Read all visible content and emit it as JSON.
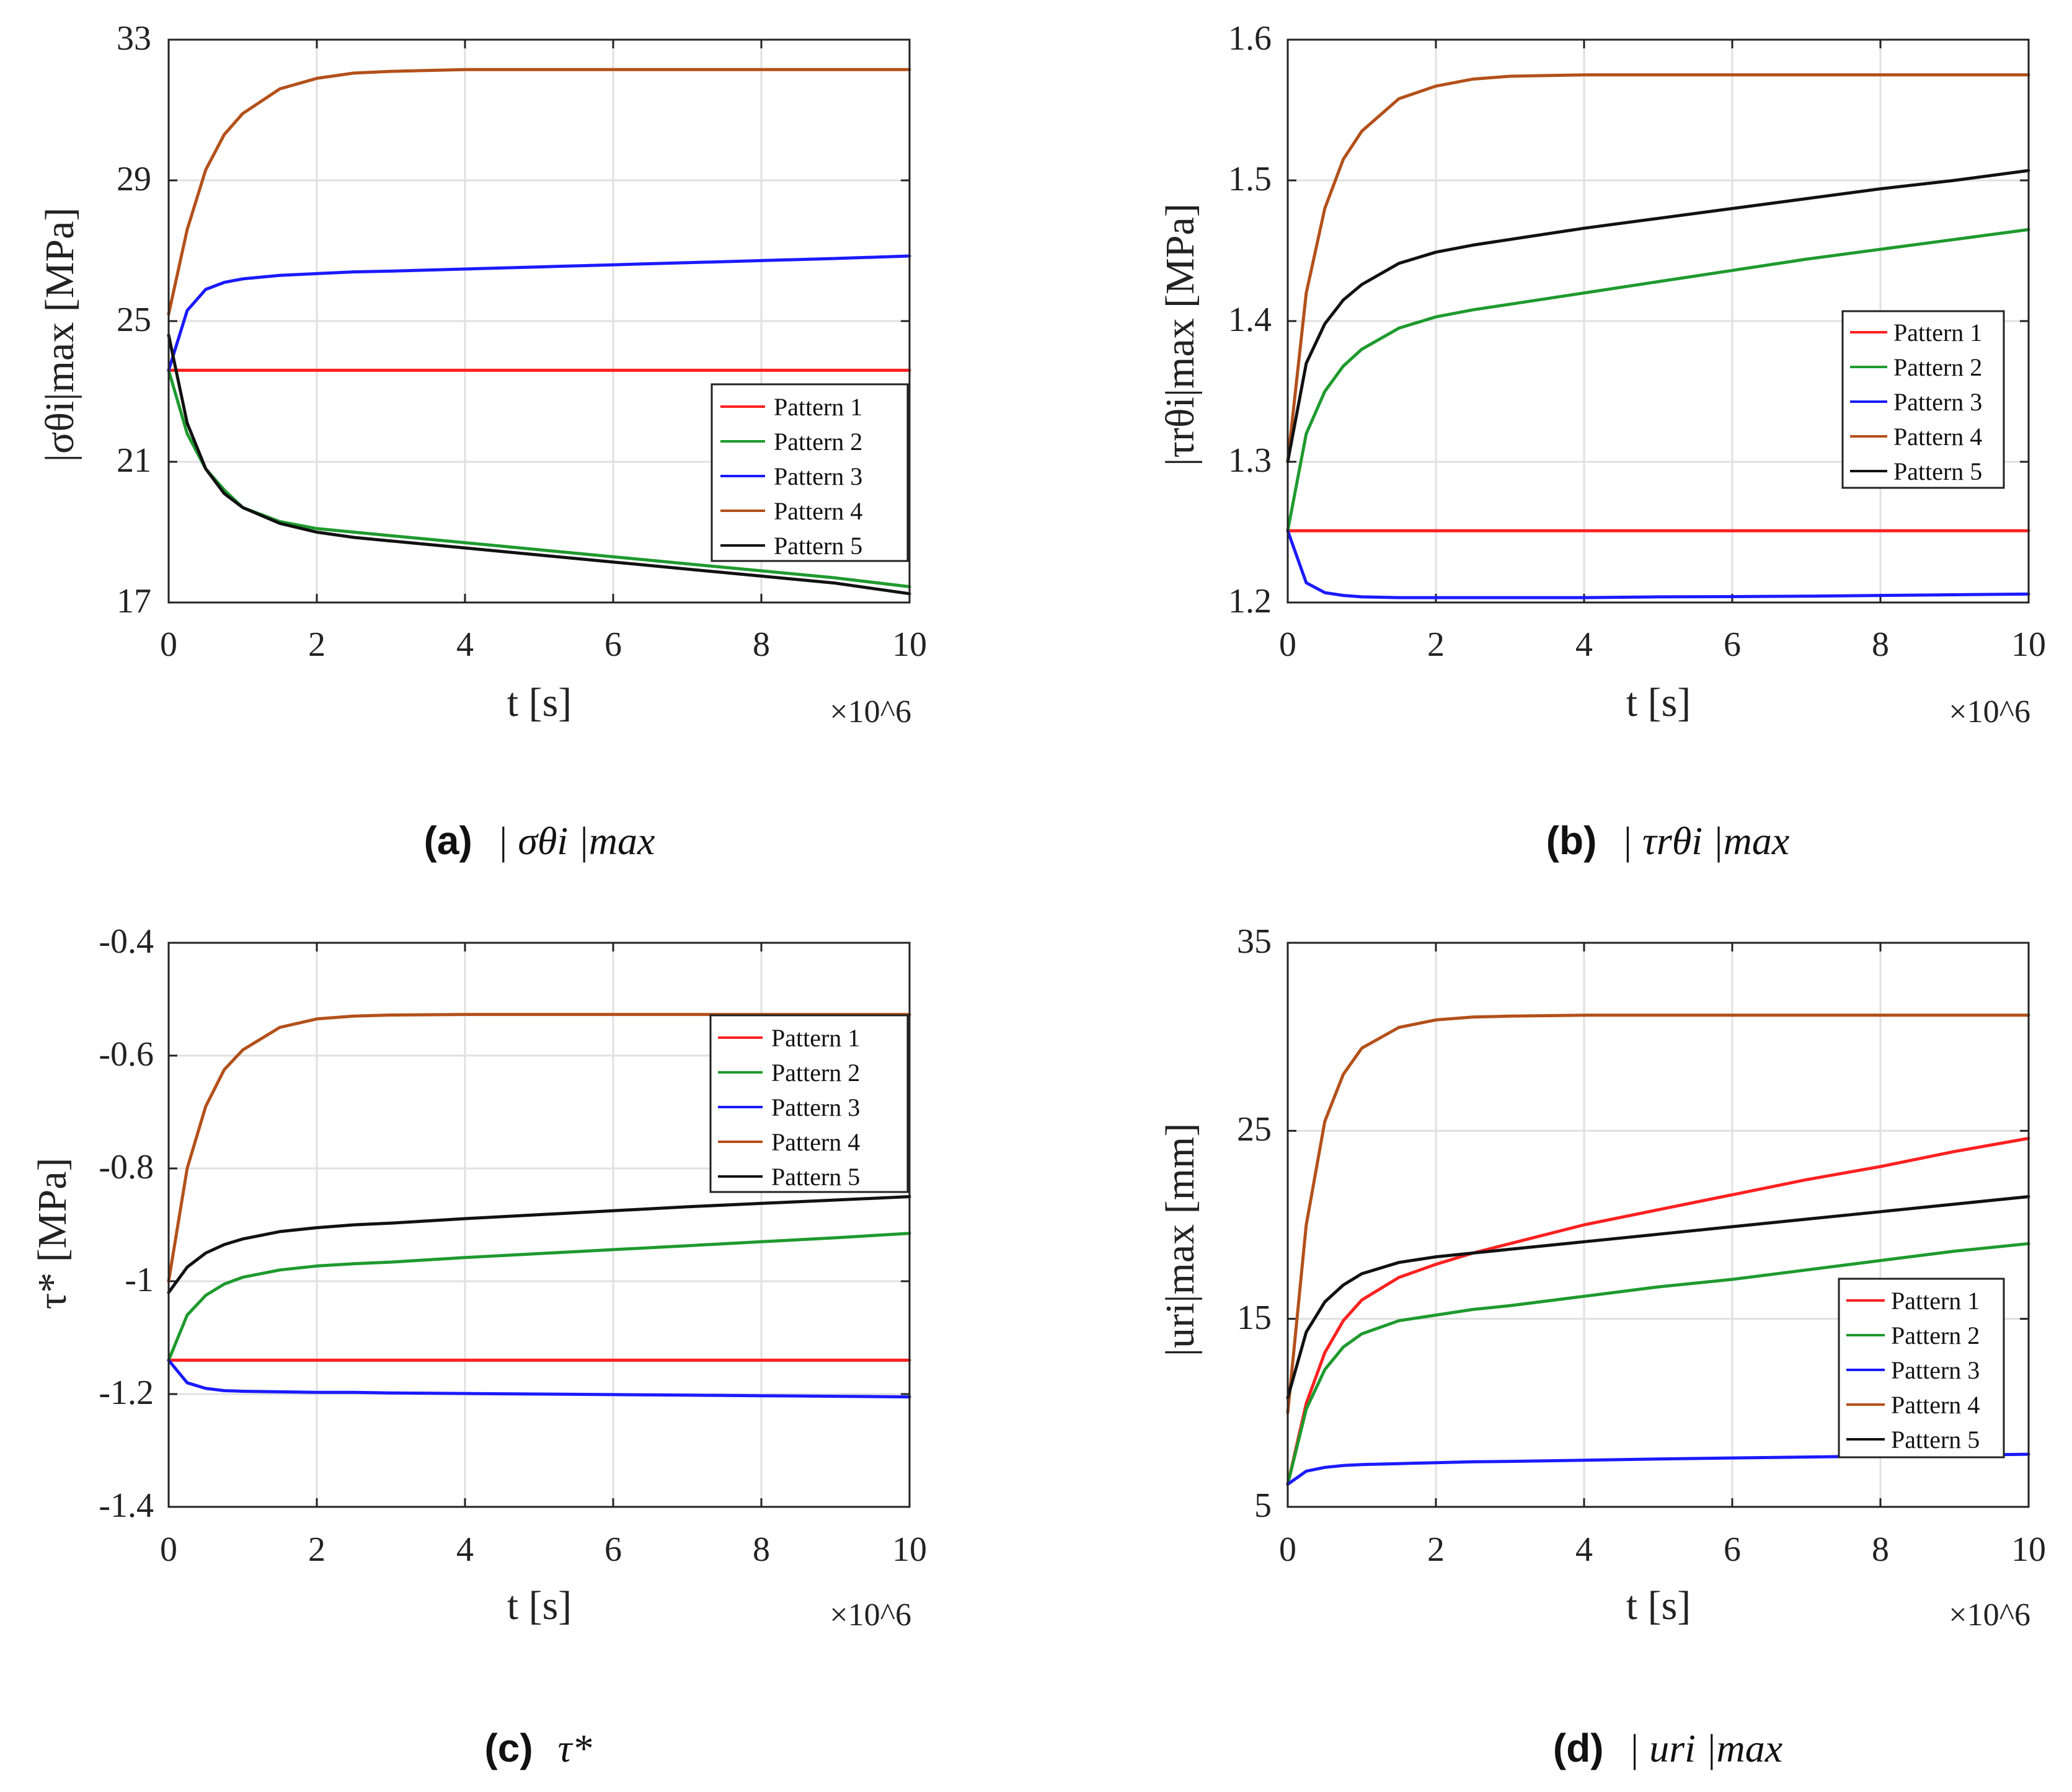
{
  "colors": {
    "pattern1": "#ff2020",
    "pattern2": "#1e9a2e",
    "pattern3": "#1a1aff",
    "pattern4": "#b3501a",
    "pattern5": "#111111",
    "grid": "#e0e0e0"
  },
  "chart_data": [
    {
      "id": "a",
      "type": "line",
      "caption": "(a)",
      "caption_symbol": "| σθi |max",
      "xlabel": "t [s]",
      "ylabel": "|σθi|max [MPa]",
      "xlim": [
        0,
        10
      ],
      "ylim": [
        17,
        33
      ],
      "xticks": [
        "0",
        "2",
        "4",
        "6",
        "8",
        "10"
      ],
      "yticks": [
        "17",
        "21",
        "25",
        "29",
        "33"
      ],
      "x_multiplier": "×10^6",
      "legend_position": "lower-right",
      "x": [
        0,
        0.25,
        0.5,
        0.75,
        1,
        1.5,
        2,
        2.5,
        3,
        4,
        5,
        6,
        7,
        8,
        9,
        10
      ],
      "series": [
        {
          "name": "Pattern 1",
          "color_key": "pattern1",
          "values": [
            23.6,
            23.6,
            23.6,
            23.6,
            23.6,
            23.6,
            23.6,
            23.6,
            23.6,
            23.6,
            23.6,
            23.6,
            23.6,
            23.6,
            23.6,
            23.6
          ]
        },
        {
          "name": "Pattern 2",
          "color_key": "pattern2",
          "values": [
            23.6,
            21.8,
            20.8,
            20.2,
            19.7,
            19.3,
            19.1,
            19.0,
            18.9,
            18.7,
            18.5,
            18.3,
            18.1,
            17.9,
            17.7,
            17.45
          ]
        },
        {
          "name": "Pattern 3",
          "color_key": "pattern3",
          "values": [
            23.6,
            25.3,
            25.9,
            26.1,
            26.2,
            26.3,
            26.35,
            26.4,
            26.42,
            26.48,
            26.54,
            26.6,
            26.66,
            26.72,
            26.78,
            26.85
          ]
        },
        {
          "name": "Pattern 4",
          "color_key": "pattern4",
          "values": [
            25.2,
            27.6,
            29.3,
            30.3,
            30.9,
            31.6,
            31.9,
            32.05,
            32.1,
            32.15,
            32.15,
            32.15,
            32.15,
            32.15,
            32.15,
            32.15
          ]
        },
        {
          "name": "Pattern 5",
          "color_key": "pattern5",
          "values": [
            24.6,
            22.1,
            20.8,
            20.1,
            19.7,
            19.25,
            19.0,
            18.85,
            18.75,
            18.55,
            18.35,
            18.15,
            17.95,
            17.75,
            17.55,
            17.25
          ]
        }
      ]
    },
    {
      "id": "b",
      "type": "line",
      "caption": "(b)",
      "caption_symbol": "| τrθi |max",
      "xlabel": "t [s]",
      "ylabel": "|τrθi|max [MPa]",
      "xlim": [
        0,
        10
      ],
      "ylim": [
        1.2,
        1.6
      ],
      "xticks": [
        "0",
        "2",
        "4",
        "6",
        "8",
        "10"
      ],
      "yticks": [
        "1.2",
        "1.3",
        "1.4",
        "1.5",
        "1.6"
      ],
      "x_multiplier": "×10^6",
      "legend_position": "upper-right",
      "x": [
        0,
        0.25,
        0.5,
        0.75,
        1,
        1.5,
        2,
        2.5,
        3,
        4,
        5,
        6,
        7,
        8,
        9,
        10
      ],
      "series": [
        {
          "name": "Pattern 1",
          "color_key": "pattern1",
          "values": [
            1.251,
            1.251,
            1.251,
            1.251,
            1.251,
            1.251,
            1.251,
            1.251,
            1.251,
            1.251,
            1.251,
            1.251,
            1.251,
            1.251,
            1.251,
            1.251
          ]
        },
        {
          "name": "Pattern 2",
          "color_key": "pattern2",
          "values": [
            1.251,
            1.32,
            1.35,
            1.368,
            1.38,
            1.395,
            1.403,
            1.408,
            1.412,
            1.42,
            1.428,
            1.436,
            1.444,
            1.451,
            1.458,
            1.465
          ]
        },
        {
          "name": "Pattern 3",
          "color_key": "pattern3",
          "values": [
            1.251,
            1.214,
            1.207,
            1.205,
            1.204,
            1.2035,
            1.2035,
            1.2035,
            1.2035,
            1.2035,
            1.204,
            1.2042,
            1.2045,
            1.205,
            1.2055,
            1.206
          ]
        },
        {
          "name": "Pattern 4",
          "color_key": "pattern4",
          "values": [
            1.3,
            1.42,
            1.48,
            1.515,
            1.535,
            1.558,
            1.567,
            1.572,
            1.574,
            1.575,
            1.575,
            1.575,
            1.575,
            1.575,
            1.575,
            1.575
          ]
        },
        {
          "name": "Pattern 5",
          "color_key": "pattern5",
          "values": [
            1.3,
            1.37,
            1.398,
            1.415,
            1.426,
            1.441,
            1.449,
            1.454,
            1.458,
            1.466,
            1.473,
            1.48,
            1.487,
            1.494,
            1.5,
            1.507
          ]
        }
      ]
    },
    {
      "id": "c",
      "type": "line",
      "caption": "(c)",
      "caption_symbol": "τ*",
      "xlabel": "t [s]",
      "ylabel": "τ* [MPa]",
      "xlim": [
        0,
        10
      ],
      "ylim": [
        -1.4,
        -0.4
      ],
      "xticks": [
        "0",
        "2",
        "4",
        "6",
        "8",
        "10"
      ],
      "yticks": [
        "-1.4",
        "-1.2",
        "-1",
        "-0.8",
        "-0.6",
        "-0.4"
      ],
      "x_multiplier": "×10^6",
      "legend_position": "upper-right",
      "x": [
        0,
        0.25,
        0.5,
        0.75,
        1,
        1.5,
        2,
        2.5,
        3,
        4,
        5,
        6,
        7,
        8,
        9,
        10
      ],
      "series": [
        {
          "name": "Pattern 1",
          "color_key": "pattern1",
          "values": [
            -1.14,
            -1.14,
            -1.14,
            -1.14,
            -1.14,
            -1.14,
            -1.14,
            -1.14,
            -1.14,
            -1.14,
            -1.14,
            -1.14,
            -1.14,
            -1.14,
            -1.14,
            -1.14
          ]
        },
        {
          "name": "Pattern 2",
          "color_key": "pattern2",
          "values": [
            -1.14,
            -1.06,
            -1.025,
            -1.005,
            -0.993,
            -0.98,
            -0.973,
            -0.969,
            -0.966,
            -0.958,
            -0.951,
            -0.944,
            -0.937,
            -0.93,
            -0.923,
            -0.915
          ]
        },
        {
          "name": "Pattern 3",
          "color_key": "pattern3",
          "values": [
            -1.14,
            -1.18,
            -1.19,
            -1.194,
            -1.195,
            -1.196,
            -1.197,
            -1.197,
            -1.198,
            -1.199,
            -1.2,
            -1.201,
            -1.202,
            -1.203,
            -1.204,
            -1.205
          ]
        },
        {
          "name": "Pattern 4",
          "color_key": "pattern4",
          "values": [
            -1.0,
            -0.8,
            -0.69,
            -0.625,
            -0.59,
            -0.55,
            -0.535,
            -0.53,
            -0.528,
            -0.527,
            -0.527,
            -0.527,
            -0.527,
            -0.527,
            -0.527,
            -0.527
          ]
        },
        {
          "name": "Pattern 5",
          "color_key": "pattern5",
          "values": [
            -1.02,
            -0.975,
            -0.95,
            -0.935,
            -0.925,
            -0.912,
            -0.905,
            -0.9,
            -0.897,
            -0.889,
            -0.882,
            -0.875,
            -0.868,
            -0.862,
            -0.856,
            -0.85
          ]
        }
      ]
    },
    {
      "id": "d",
      "type": "line",
      "caption": "(d)",
      "caption_symbol": "| uri |max",
      "xlabel": "t [s]",
      "ylabel": "|uri|max [mm]",
      "xlim": [
        0,
        10
      ],
      "ylim": [
        5,
        35
      ],
      "xticks": [
        "0",
        "2",
        "4",
        "6",
        "8",
        "10"
      ],
      "yticks": [
        "5",
        "15",
        "25",
        "35"
      ],
      "x_multiplier": "×10^6",
      "legend_position": "lower-right",
      "x": [
        0,
        0.25,
        0.5,
        0.75,
        1,
        1.5,
        2,
        2.5,
        3,
        4,
        5,
        6,
        7,
        8,
        9,
        10
      ],
      "series": [
        {
          "name": "Pattern 1",
          "color_key": "pattern1",
          "values": [
            6.2,
            10.5,
            13.2,
            14.9,
            16.0,
            17.2,
            17.9,
            18.5,
            19.0,
            20.0,
            20.8,
            21.6,
            22.4,
            23.1,
            23.9,
            24.6
          ]
        },
        {
          "name": "Pattern 2",
          "color_key": "pattern2",
          "values": [
            6.2,
            10.2,
            12.3,
            13.5,
            14.2,
            14.9,
            15.2,
            15.5,
            15.7,
            16.2,
            16.7,
            17.1,
            17.6,
            18.1,
            18.6,
            19.0
          ]
        },
        {
          "name": "Pattern 3",
          "color_key": "pattern3",
          "values": [
            6.2,
            6.9,
            7.1,
            7.2,
            7.25,
            7.3,
            7.35,
            7.4,
            7.42,
            7.48,
            7.55,
            7.6,
            7.65,
            7.7,
            7.75,
            7.8
          ]
        },
        {
          "name": "Pattern 4",
          "color_key": "pattern4",
          "values": [
            10.0,
            20.0,
            25.5,
            28.0,
            29.4,
            30.5,
            30.9,
            31.05,
            31.1,
            31.15,
            31.15,
            31.15,
            31.15,
            31.15,
            31.15,
            31.15
          ]
        },
        {
          "name": "Pattern 5",
          "color_key": "pattern5",
          "values": [
            10.8,
            14.3,
            15.9,
            16.8,
            17.4,
            18.0,
            18.3,
            18.5,
            18.7,
            19.1,
            19.5,
            19.9,
            20.3,
            20.7,
            21.1,
            21.5
          ]
        }
      ]
    }
  ]
}
